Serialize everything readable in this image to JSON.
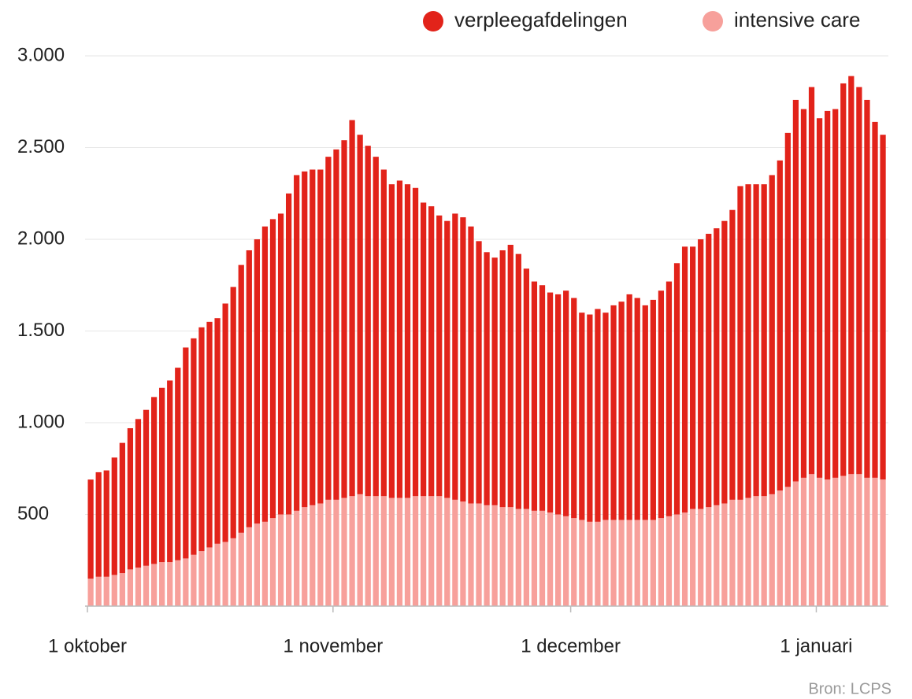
{
  "chart_data": {
    "type": "stacked-bar",
    "source": "Bron: LCPS",
    "categories": [
      "1 oktober",
      null,
      null,
      null,
      null,
      null,
      null,
      null,
      null,
      null,
      null,
      null,
      null,
      null,
      null,
      null,
      null,
      null,
      null,
      null,
      null,
      null,
      null,
      null,
      null,
      null,
      null,
      null,
      null,
      null,
      null,
      "1 november",
      null,
      null,
      null,
      null,
      null,
      null,
      null,
      null,
      null,
      null,
      null,
      null,
      null,
      null,
      null,
      null,
      null,
      null,
      null,
      null,
      null,
      null,
      null,
      null,
      null,
      null,
      null,
      null,
      null,
      "1 december",
      null,
      null,
      null,
      null,
      null,
      null,
      null,
      null,
      null,
      null,
      null,
      null,
      null,
      null,
      null,
      null,
      null,
      null,
      null,
      null,
      null,
      null,
      null,
      null,
      null,
      null,
      null,
      null,
      null,
      null,
      "1 januari",
      null,
      null,
      null,
      null,
      null,
      null,
      null,
      null
    ],
    "series": [
      {
        "name": "intensive care",
        "color": "#f7a09b",
        "values": [
          150,
          160,
          160,
          170,
          180,
          200,
          210,
          220,
          230,
          240,
          240,
          250,
          260,
          280,
          300,
          320,
          340,
          350,
          370,
          400,
          430,
          450,
          460,
          480,
          500,
          500,
          520,
          540,
          550,
          560,
          580,
          580,
          590,
          600,
          610,
          600,
          600,
          600,
          590,
          590,
          590,
          600,
          600,
          600,
          600,
          590,
          580,
          570,
          560,
          560,
          550,
          550,
          540,
          540,
          530,
          530,
          520,
          520,
          510,
          500,
          490,
          480,
          470,
          460,
          460,
          470,
          470,
          470,
          470,
          470,
          470,
          470,
          480,
          490,
          500,
          510,
          530,
          530,
          540,
          550,
          560,
          580,
          580,
          590,
          600,
          600,
          610,
          630,
          650,
          680,
          700,
          720,
          700,
          690,
          700,
          710,
          720,
          720,
          700,
          700,
          690
        ]
      },
      {
        "name": "verpleegafdelingen",
        "color": "#e2231a",
        "values": [
          540,
          570,
          580,
          640,
          710,
          770,
          810,
          850,
          910,
          950,
          990,
          1050,
          1150,
          1180,
          1220,
          1230,
          1230,
          1300,
          1370,
          1460,
          1510,
          1550,
          1610,
          1630,
          1640,
          1750,
          1830,
          1830,
          1830,
          1820,
          1870,
          1910,
          1950,
          2050,
          1960,
          1910,
          1850,
          1780,
          1710,
          1730,
          1710,
          1680,
          1600,
          1580,
          1530,
          1510,
          1560,
          1550,
          1510,
          1430,
          1380,
          1350,
          1400,
          1430,
          1390,
          1310,
          1250,
          1230,
          1200,
          1200,
          1230,
          1200,
          1130,
          1130,
          1160,
          1130,
          1170,
          1190,
          1230,
          1210,
          1170,
          1200,
          1240,
          1280,
          1370,
          1450,
          1430,
          1470,
          1490,
          1510,
          1540,
          1580,
          1710,
          1710,
          1700,
          1700,
          1740,
          1800,
          1930,
          2080,
          2010,
          2110,
          1960,
          2010,
          2010,
          2140,
          2170,
          2110,
          2060,
          1940,
          1880
        ]
      }
    ],
    "ylim": [
      0,
      3000
    ],
    "yticks": [
      500,
      {
        "value": 1000,
        "label": "1.000"
      },
      {
        "value": 1500,
        "label": "1.500"
      },
      {
        "value": 2000,
        "label": "2.000"
      },
      {
        "value": 2500,
        "label": "2.500"
      },
      {
        "value": 3000,
        "label": "3.000"
      }
    ],
    "grid": true
  }
}
